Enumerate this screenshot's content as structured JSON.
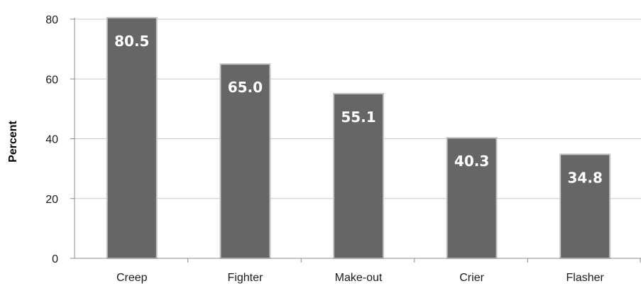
{
  "chart_data": {
    "type": "bar",
    "categories": [
      "Creep",
      "Fighter",
      "Make-out",
      "Crier",
      "Flasher"
    ],
    "values": [
      80.5,
      65.0,
      55.1,
      40.3,
      34.8
    ],
    "data_labels": [
      "80.5",
      "65.0",
      "55.1",
      "40.3",
      "34.8"
    ],
    "title": "",
    "xlabel": "",
    "ylabel": "Percent",
    "ylim": [
      0,
      80
    ],
    "yticks": [
      0,
      20,
      40,
      60,
      80
    ],
    "grid": true,
    "legend": "none",
    "colors": {
      "bar_fill": "#666666",
      "bar_stroke": "#c4c4c4",
      "gridline": "#c8c8c8",
      "axis": "#8c8c8c",
      "data_label": "#ffffff"
    }
  }
}
